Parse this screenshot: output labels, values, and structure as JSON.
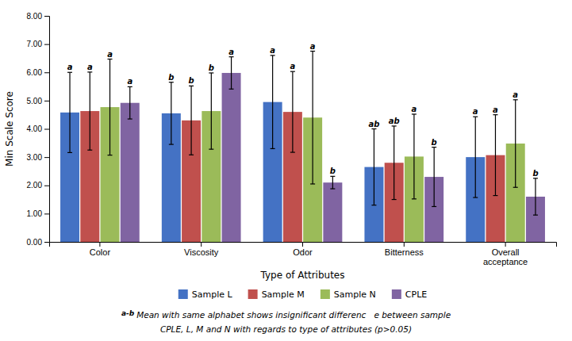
{
  "chart_data": {
    "type": "bar",
    "xlabel": "Type of Attributes",
    "ylabel": "Min Scale Score",
    "categories": [
      "Color",
      "Viscosity",
      "Odor",
      "Bitterness",
      "Overall\nacceptance"
    ],
    "series": [
      {
        "name": "Sample L",
        "color": "#4472C4",
        "values": [
          4.58,
          4.55,
          4.95,
          2.65,
          3.0
        ],
        "errors": [
          1.42,
          1.1,
          1.65,
          1.35,
          1.43
        ],
        "sig_labels": [
          "a",
          "b",
          "a",
          "ab",
          "a"
        ]
      },
      {
        "name": "Sample M",
        "color": "#C0504D",
        "values": [
          4.63,
          4.3,
          4.6,
          2.8,
          3.07
        ],
        "errors": [
          1.38,
          1.22,
          1.43,
          1.3,
          1.43
        ],
        "sig_labels": [
          "a",
          "b",
          "a",
          "ab",
          "a"
        ]
      },
      {
        "name": "Sample N",
        "color": "#9BBB59",
        "values": [
          4.77,
          4.63,
          4.4,
          3.02,
          3.48
        ],
        "errors": [
          1.7,
          1.35,
          2.35,
          1.5,
          1.55
        ],
        "sig_labels": [
          "a",
          "b",
          "a",
          "a",
          "a"
        ]
      },
      {
        "name": "CPLE",
        "color": "#8064A2",
        "values": [
          4.92,
          5.98,
          2.1,
          2.3,
          1.6
        ],
        "errors": [
          0.57,
          0.57,
          0.22,
          1.05,
          0.65
        ],
        "sig_labels": [
          "a",
          "a",
          "b",
          "b",
          "b"
        ]
      }
    ],
    "ylim": [
      0,
      8.0
    ],
    "yticks": [
      {
        "value": 0,
        "label": "0.00"
      },
      {
        "value": 1,
        "label": "1.00"
      },
      {
        "value": 2,
        "label": "2.00"
      },
      {
        "value": 3,
        "label": "3.00"
      },
      {
        "value": 4,
        "label": "4.00"
      },
      {
        "value": 5,
        "label": "5.00"
      },
      {
        "value": 6,
        "label": "6.00"
      },
      {
        "value": 7,
        "label": "7.00"
      },
      {
        "value": 8,
        "label": "8.00"
      }
    ],
    "annotations": [
      "a-b",
      "Mean with same alphabet shows insignificant differenc   e between sample",
      "CPLE, L, M and N with regards to type of attributes (p>0.05)"
    ],
    "grid": false,
    "legend": "bottom"
  }
}
